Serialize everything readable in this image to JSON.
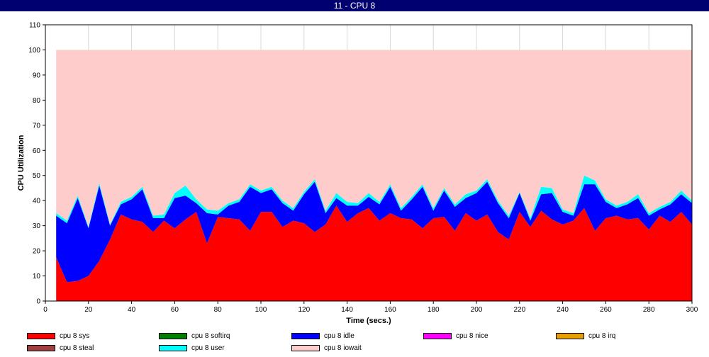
{
  "window": {
    "title": "11 - CPU 8"
  },
  "chart_data": {
    "type": "area",
    "stacked": true,
    "xlabel": "Time (secs.)",
    "ylabel": "CPU Utilization",
    "xlim": [
      0,
      300
    ],
    "ylim": [
      0,
      110
    ],
    "xticks": [
      0,
      20,
      40,
      60,
      80,
      100,
      120,
      140,
      160,
      180,
      200,
      220,
      240,
      260,
      280,
      300
    ],
    "yticks": [
      0,
      10,
      20,
      30,
      40,
      50,
      60,
      70,
      80,
      90,
      100,
      110
    ],
    "grid": true,
    "legend_position": "bottom",
    "x": [
      5,
      10,
      15,
      20,
      25,
      30,
      35,
      40,
      45,
      50,
      55,
      60,
      65,
      70,
      75,
      80,
      85,
      90,
      95,
      100,
      105,
      110,
      115,
      120,
      125,
      130,
      135,
      140,
      145,
      150,
      155,
      160,
      165,
      170,
      175,
      180,
      185,
      190,
      195,
      200,
      205,
      210,
      215,
      220,
      225,
      230,
      235,
      240,
      245,
      250,
      255,
      260,
      265,
      270,
      275,
      280,
      285,
      290,
      295,
      300
    ],
    "series": [
      {
        "name": "cpu 8 sys",
        "color": "#ff0000",
        "values": [
          17.5,
          7.5,
          8,
          10,
          16,
          24.5,
          34.5,
          32.5,
          31.5,
          27.5,
          32,
          29,
          32.5,
          35.5,
          23,
          33.5,
          33,
          32.5,
          28,
          35.5,
          35.5,
          29.5,
          32,
          31,
          27.5,
          30.5,
          38,
          31.5,
          35,
          37,
          32,
          35,
          33,
          32.5,
          29,
          33,
          33.5,
          28,
          35,
          32,
          34.5,
          27.5,
          24.5,
          35.5,
          29.5,
          36,
          32.5,
          30.5,
          32,
          37,
          28,
          33,
          34,
          32.5,
          33,
          28.5,
          34,
          31.5,
          35.5,
          30.5
        ]
      },
      {
        "name": "cpu 8 softirq",
        "color": "#008000",
        "values": [
          0,
          0,
          0,
          0,
          0,
          0,
          0,
          0,
          0,
          0,
          0,
          0,
          0,
          0,
          0,
          0,
          0,
          0,
          0,
          0,
          0,
          0,
          0,
          0,
          0,
          0,
          0,
          0,
          0,
          0,
          0,
          0,
          0,
          0,
          0,
          0,
          0,
          0,
          0,
          0,
          0,
          0,
          0,
          0,
          0,
          0,
          0,
          0,
          0,
          0,
          0,
          0,
          0,
          0,
          0,
          0,
          0,
          0,
          0,
          0
        ]
      },
      {
        "name": "cpu 8 idle",
        "color": "#0000ff",
        "values": [
          16.5,
          23.5,
          33,
          19,
          30,
          5.5,
          4,
          8,
          13,
          5.5,
          1,
          12,
          9.5,
          3.5,
          12,
          1,
          5,
          7,
          17.5,
          7.5,
          9,
          9.5,
          4,
          11.5,
          20,
          4.5,
          3,
          6.5,
          3,
          4.5,
          6.5,
          10.5,
          3,
          8,
          16.5,
          3,
          10.5,
          9.5,
          6,
          11,
          13,
          11.5,
          8.5,
          7.5,
          2.5,
          6.5,
          10.5,
          5,
          2,
          9.5,
          18.5,
          6.5,
          3,
          6,
          8,
          5.5,
          2.5,
          7,
          7,
          8.5
        ]
      },
      {
        "name": "cpu 8 nice",
        "color": "#ff00ff",
        "values": [
          0,
          0,
          0,
          0,
          0,
          0,
          0,
          0,
          0,
          0,
          0,
          0,
          0,
          0,
          0,
          0,
          0,
          0,
          0,
          0,
          0,
          0,
          0,
          0,
          0,
          0,
          0,
          0,
          0,
          0,
          0,
          0,
          0,
          0,
          0,
          0,
          0,
          0,
          0,
          0,
          0,
          0,
          0,
          0,
          0,
          0,
          0,
          0,
          0,
          0,
          0,
          0,
          0,
          0,
          0,
          0,
          0,
          0,
          0,
          0
        ]
      },
      {
        "name": "cpu 8 irq",
        "color": "#e8a000",
        "values": [
          0,
          0,
          0,
          0,
          0,
          0,
          0,
          0,
          0,
          0,
          0,
          0,
          0,
          0,
          0,
          0,
          0,
          0,
          0,
          0,
          0,
          0,
          0,
          0,
          0,
          0,
          0,
          0,
          0,
          0,
          0,
          0,
          0,
          0,
          0,
          0,
          0,
          0,
          0,
          0,
          0,
          0,
          0,
          0,
          0,
          0,
          0,
          0,
          0,
          0,
          0,
          0,
          0,
          0,
          0,
          0,
          0,
          0,
          0,
          0
        ]
      },
      {
        "name": "cpu 8 steal",
        "color": "#a04040",
        "values": [
          0,
          0,
          0,
          0,
          0,
          0,
          0,
          0,
          0,
          0,
          0,
          0,
          0,
          0,
          0,
          0,
          0,
          0,
          0,
          0,
          0,
          0,
          0,
          0,
          0,
          0,
          0,
          0,
          0,
          0,
          0,
          0,
          0,
          0,
          0,
          0,
          0,
          0,
          0,
          0,
          0,
          0,
          0,
          0,
          0,
          0,
          0,
          0,
          0,
          0,
          0,
          0,
          0,
          0,
          0,
          0,
          0,
          0,
          0,
          0
        ]
      },
      {
        "name": "cpu 8 user",
        "color": "#00ffff",
        "values": [
          1,
          1,
          1,
          0.5,
          1,
          0.5,
          1,
          1,
          1,
          1,
          1.5,
          2,
          4,
          1.5,
          1.5,
          1.5,
          1,
          1,
          1,
          1,
          1,
          1,
          1,
          1,
          1,
          1,
          2,
          1.5,
          1,
          1.5,
          1,
          1,
          1,
          1,
          1,
          1,
          1,
          1,
          1.5,
          1,
          1,
          1,
          1,
          0.5,
          1,
          3,
          2,
          1,
          1,
          3.5,
          1.5,
          1,
          1,
          1,
          1.5,
          1,
          1,
          1,
          1.5,
          1
        ]
      },
      {
        "name": "cpu 8 iowait",
        "color": "#ffcccc",
        "values": [
          65,
          68,
          58,
          70.5,
          53,
          69.5,
          60.5,
          58.5,
          54.5,
          66,
          65.5,
          57,
          54,
          59.5,
          63.5,
          64,
          61,
          59.5,
          53.5,
          56,
          54.5,
          60,
          63,
          56.5,
          51.5,
          64,
          57,
          60.5,
          61,
          57,
          60.5,
          53.5,
          63,
          58.5,
          53.5,
          63,
          55,
          61.5,
          57.5,
          56,
          51.5,
          60,
          66,
          56.5,
          67,
          54.5,
          55,
          63.5,
          65,
          50,
          52,
          59.5,
          62,
          60.5,
          57.5,
          65,
          62.5,
          60.5,
          56,
          60
        ]
      }
    ]
  }
}
